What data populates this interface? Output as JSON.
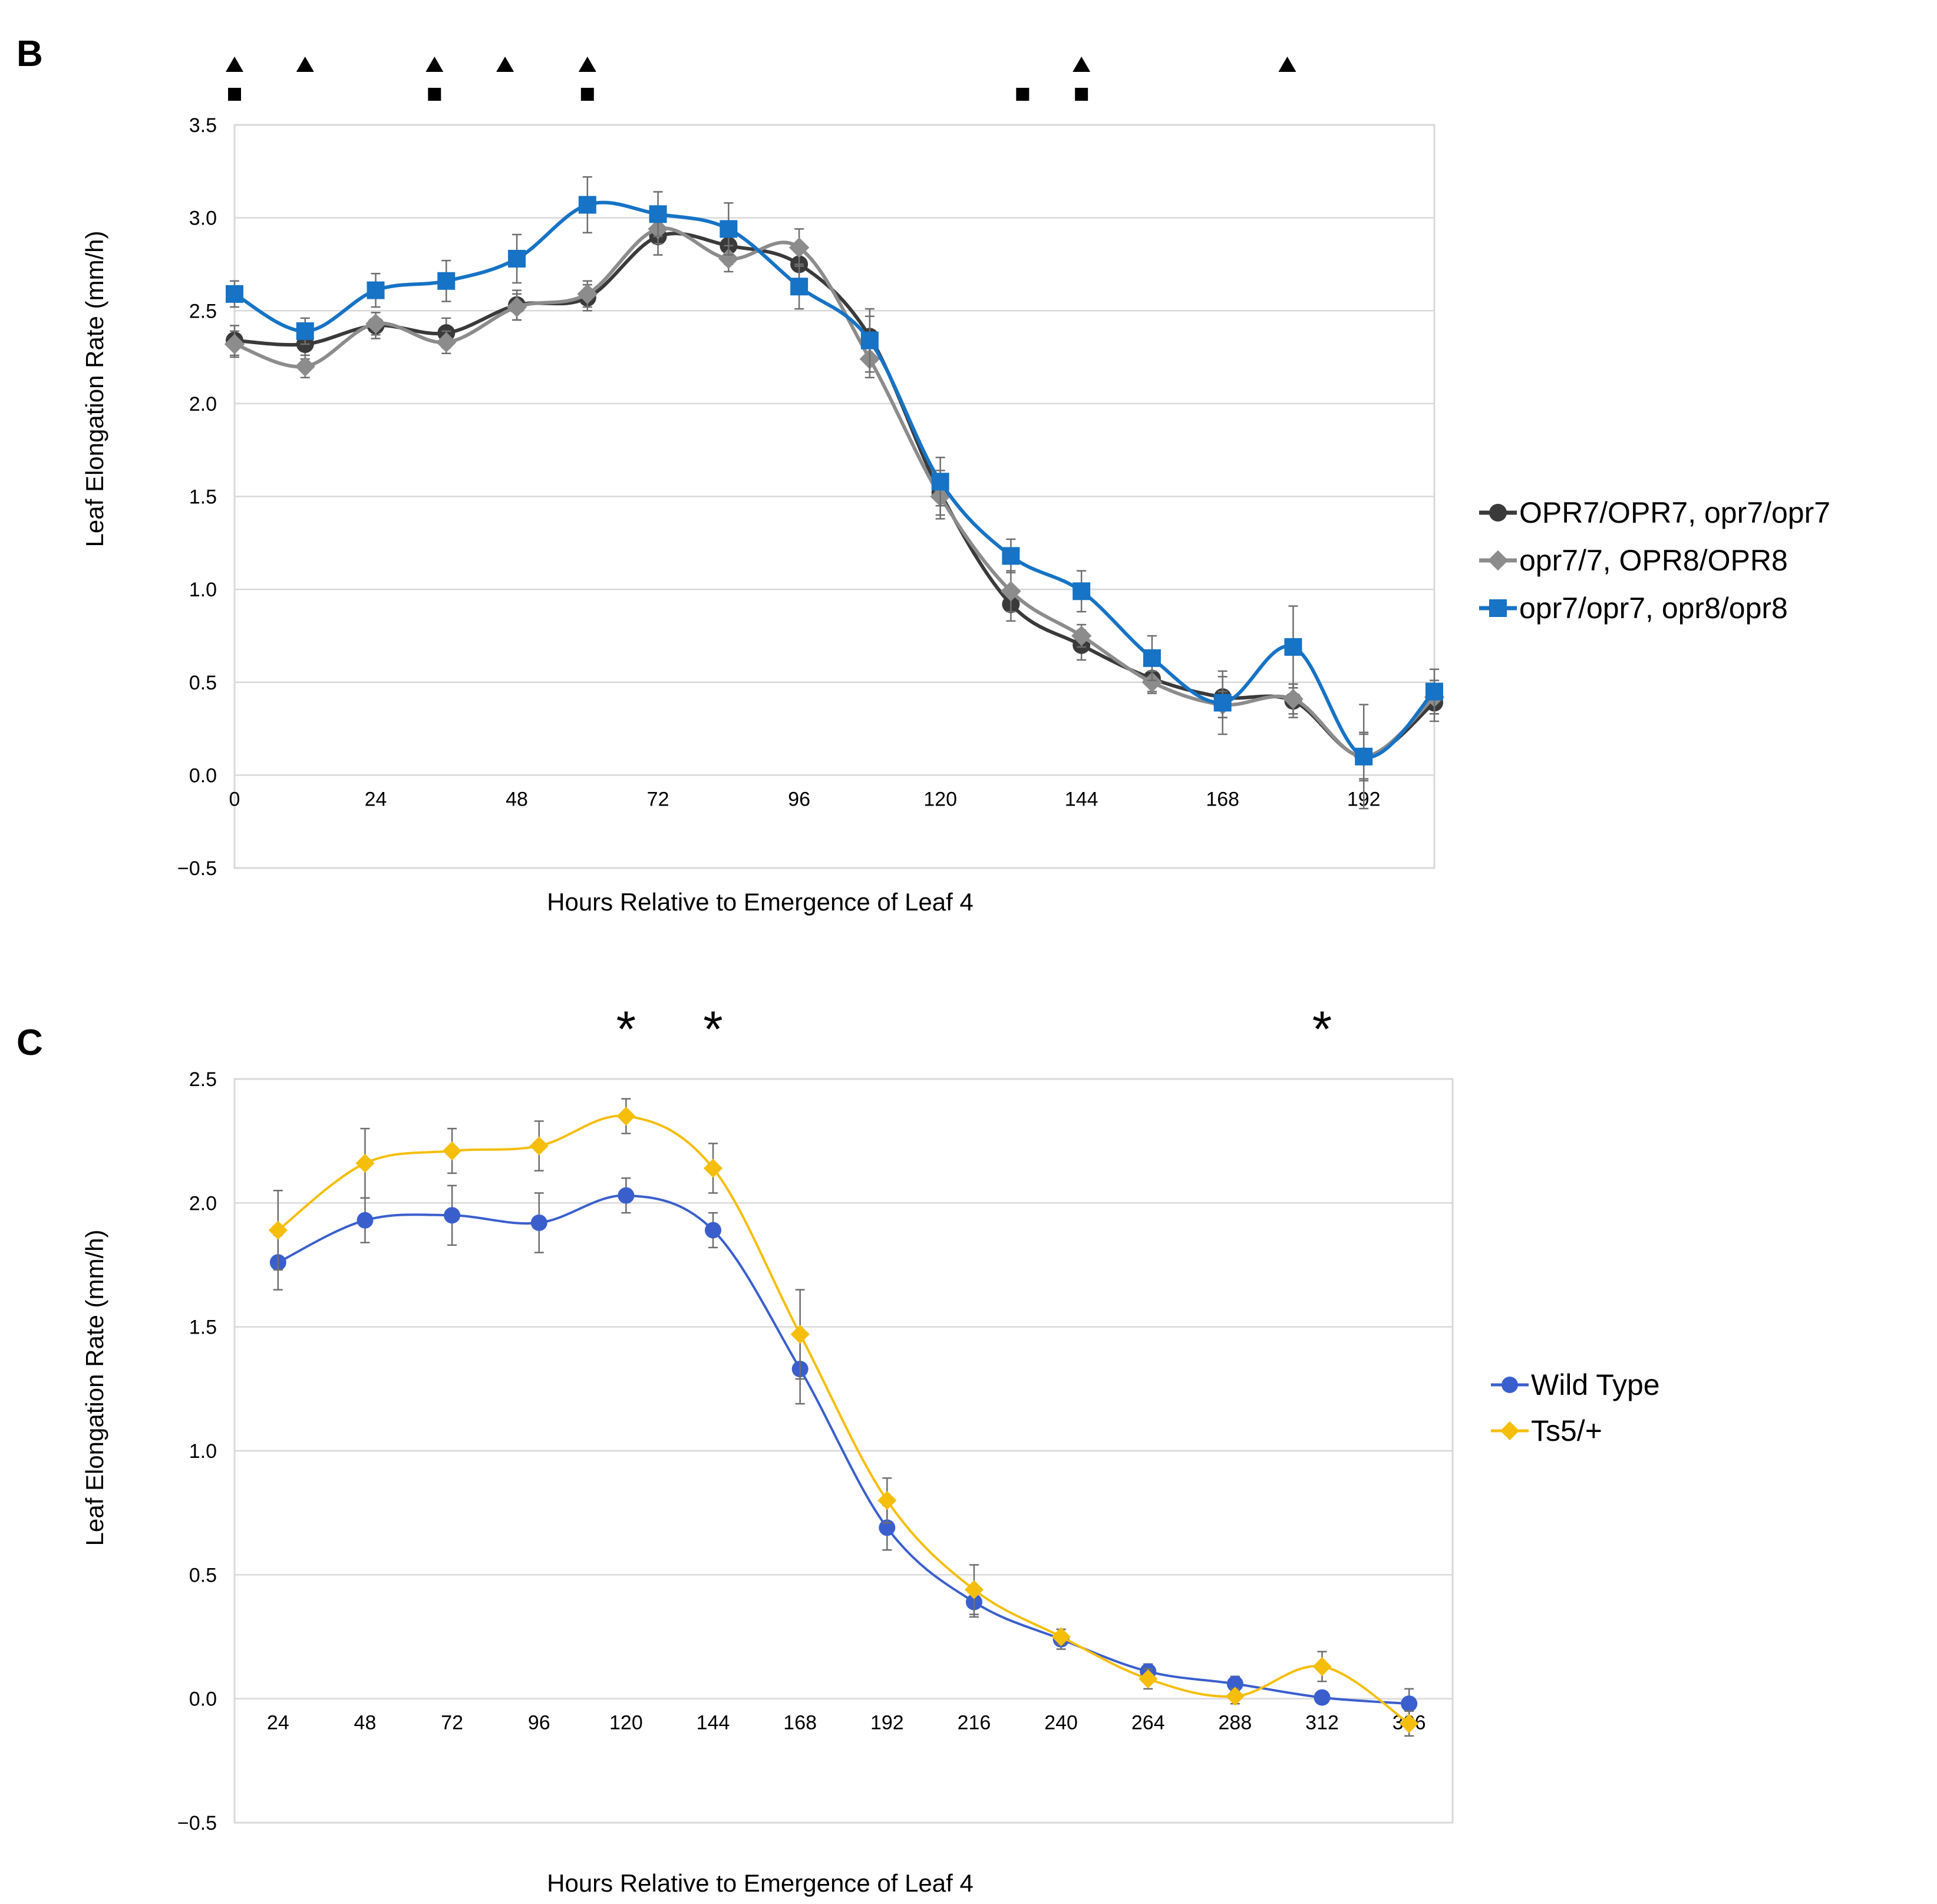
{
  "colors": {
    "background": "#ffffff",
    "gridline": "#d9d9d9",
    "frame": "#d9d9d9",
    "sig_marker": "#000000"
  },
  "chart_data": [
    {
      "panel": "B",
      "type": "line",
      "title": "",
      "xlabel": "Hours Relative to Emergence of Leaf 4",
      "ylabel": "Leaf Elongation Rate (mm/h)",
      "xlim": [
        0,
        204
      ],
      "ylim": [
        -0.5,
        3.5
      ],
      "x_ticks": [
        0,
        24,
        48,
        72,
        96,
        120,
        144,
        168,
        192
      ],
      "x_tick_labels": [
        "0",
        "24",
        "48",
        "72",
        "96",
        "120",
        "144",
        "168",
        "192"
      ],
      "y_ticks": [
        -0.5,
        0.0,
        0.5,
        1.0,
        1.5,
        2.0,
        2.5,
        3.0,
        3.5
      ],
      "y_tick_labels": [
        "−0.5",
        "0.0",
        "0.5",
        "1.0",
        "1.5",
        "2.0",
        "2.5",
        "3.0",
        "3.5"
      ],
      "grid": "horizontal",
      "legend_position": "right",
      "x": [
        0,
        12,
        24,
        36,
        48,
        60,
        72,
        84,
        96,
        108,
        120,
        132,
        144,
        156,
        168,
        180,
        192,
        204
      ],
      "series": [
        {
          "name": "OPR7/OPR7, opr7/opr7",
          "color": "#3a3a3a",
          "marker": "circle",
          "values": [
            2.34,
            2.32,
            2.42,
            2.38,
            2.53,
            2.57,
            2.9,
            2.85,
            2.75,
            2.36,
            1.52,
            0.92,
            0.7,
            0.52,
            0.42,
            0.4,
            0.1,
            0.39
          ],
          "errors": [
            0.08,
            0.08,
            0.07,
            0.08,
            0.08,
            0.07,
            0.1,
            0.1,
            0.09,
            0.11,
            0.12,
            0.09,
            0.08,
            0.07,
            0.11,
            0.09,
            0.13,
            0.1
          ]
        },
        {
          "name": "opr7/7, OPR8/OPR8",
          "color": "#8c8c8c",
          "marker": "diamond",
          "values": [
            2.32,
            2.2,
            2.43,
            2.33,
            2.52,
            2.59,
            2.94,
            2.78,
            2.84,
            2.24,
            1.5,
            0.99,
            0.75,
            0.5,
            0.38,
            0.41,
            0.1,
            0.42
          ],
          "errors": [
            0.07,
            0.06,
            0.06,
            0.06,
            0.07,
            0.07,
            0.08,
            0.07,
            0.1,
            0.1,
            0.12,
            0.11,
            0.06,
            0.06,
            0.07,
            0.08,
            0.12,
            0.09
          ]
        },
        {
          "name": "opr7/opr7, opr8/opr8",
          "color": "#1673c5",
          "marker": "square",
          "values": [
            2.59,
            2.39,
            2.61,
            2.66,
            2.78,
            3.07,
            3.02,
            2.94,
            2.63,
            2.34,
            1.58,
            1.18,
            0.99,
            0.63,
            0.39,
            0.69,
            0.1,
            0.45
          ],
          "errors": [
            0.07,
            0.07,
            0.09,
            0.11,
            0.13,
            0.15,
            0.12,
            0.14,
            0.12,
            0.17,
            0.13,
            0.09,
            0.11,
            0.12,
            0.17,
            0.22,
            0.28,
            0.12
          ]
        }
      ],
      "significance_triangles_x": [
        0,
        12,
        34,
        46,
        60,
        144,
        179
      ],
      "significance_squares_x": [
        0,
        34,
        60,
        134,
        144
      ]
    },
    {
      "panel": "C",
      "type": "line",
      "title": "",
      "xlabel": "Hours Relative to Emergence of Leaf 4",
      "ylabel": "Leaf Elongation Rate (mm/h)",
      "xlim": [
        12,
        348
      ],
      "ylim": [
        -0.5,
        2.5
      ],
      "x_ticks": [
        24,
        48,
        72,
        96,
        120,
        144,
        168,
        192,
        216,
        240,
        264,
        288,
        312,
        336
      ],
      "x_tick_labels": [
        "24",
        "48",
        "72",
        "96",
        "120",
        "144",
        "168",
        "192",
        "216",
        "240",
        "264",
        "288",
        "312",
        "336"
      ],
      "y_ticks": [
        -0.5,
        0.0,
        0.5,
        1.0,
        1.5,
        2.0,
        2.5
      ],
      "y_tick_labels": [
        "−0.5",
        "0.0",
        "0.5",
        "1.0",
        "1.5",
        "2.0",
        "2.5"
      ],
      "grid": "horizontal",
      "legend_position": "right",
      "x": [
        24,
        48,
        72,
        96,
        120,
        144,
        168,
        192,
        216,
        240,
        264,
        288,
        312,
        336
      ],
      "series": [
        {
          "name": "Wild Type",
          "color": "#3a5fcd",
          "marker": "circle",
          "values": [
            1.76,
            1.93,
            1.95,
            1.92,
            2.03,
            1.89,
            1.33,
            0.69,
            0.39,
            0.24,
            0.11,
            0.06,
            0.005,
            -0.02
          ],
          "errors": [
            0.11,
            0.09,
            0.12,
            0.12,
            0.07,
            0.07,
            0.14,
            0.09,
            0.06,
            0.04,
            0.03,
            0.03,
            0.01,
            0.06
          ]
        },
        {
          "name": "Ts5/+",
          "color": "#f5be0b",
          "marker": "diamond",
          "values": [
            1.89,
            2.16,
            2.21,
            2.23,
            2.35,
            2.14,
            1.47,
            0.8,
            0.44,
            0.25,
            0.08,
            0.01,
            0.13,
            -0.1
          ],
          "errors": [
            0.16,
            0.14,
            0.09,
            0.1,
            0.07,
            0.1,
            0.18,
            0.09,
            0.1,
            0.03,
            0.04,
            0.03,
            0.06,
            0.05
          ]
        }
      ],
      "significance_stars_x": [
        120,
        144,
        312
      ],
      "significance_symbol": "*"
    }
  ]
}
